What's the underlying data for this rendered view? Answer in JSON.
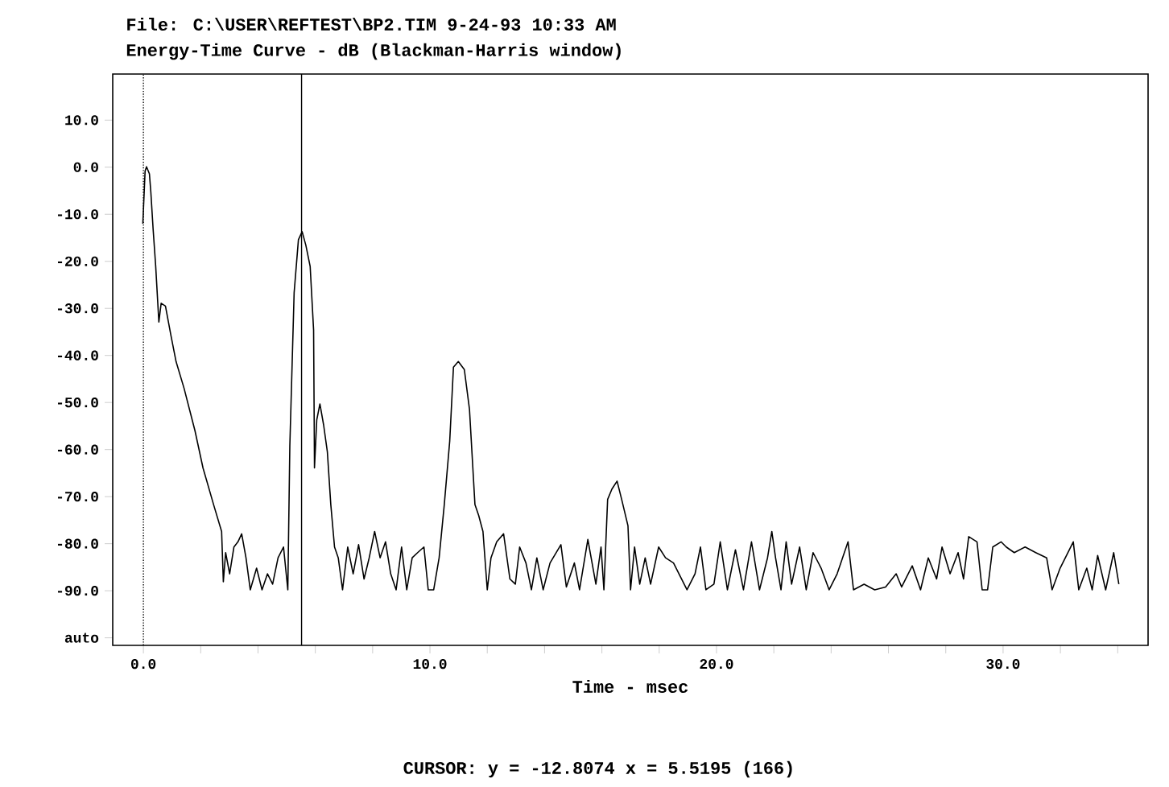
{
  "chart_data": {
    "type": "line",
    "title": "File: C:\\USER\\REFTEST\\BP2.TIM 9-24-93 10:33 AM",
    "subtitle": "Energy-Time Curve - dB (Blackman-Harris window)",
    "xlabel": "Time - msec",
    "xlim": [
      -1.07,
      35.06
    ],
    "ylim": [
      -101.6,
      19.8
    ],
    "xticks": [
      {
        "value": 0,
        "label": "0.0"
      },
      {
        "value": 2,
        "label": null
      },
      {
        "value": 4,
        "label": null
      },
      {
        "value": 6,
        "label": null
      },
      {
        "value": 8,
        "label": null
      },
      {
        "value": 10,
        "label": "10.0"
      },
      {
        "value": 12,
        "label": null
      },
      {
        "value": 14,
        "label": null
      },
      {
        "value": 16,
        "label": null
      },
      {
        "value": 18,
        "label": null
      },
      {
        "value": 20,
        "label": "20.0"
      },
      {
        "value": 22,
        "label": null
      },
      {
        "value": 24,
        "label": null
      },
      {
        "value": 26,
        "label": null
      },
      {
        "value": 28,
        "label": null
      },
      {
        "value": 30,
        "label": "30.0"
      },
      {
        "value": 32,
        "label": null
      },
      {
        "value": 34,
        "label": null
      }
    ],
    "yticks": [
      {
        "value": 10,
        "label": "10.0"
      },
      {
        "value": 0,
        "label": "0.0"
      },
      {
        "value": -10,
        "label": "-10.0"
      },
      {
        "value": -20,
        "label": "-20.0"
      },
      {
        "value": -30,
        "label": "-30.0"
      },
      {
        "value": -40,
        "label": "-40.0"
      },
      {
        "value": -50,
        "label": "-50.0"
      },
      {
        "value": -60,
        "label": "-60.0"
      },
      {
        "value": -70,
        "label": "-70.0"
      },
      {
        "value": -80,
        "label": "-80.0"
      },
      {
        "value": -90,
        "label": "-90.0"
      },
      {
        "value": -100,
        "label": "auto"
      }
    ],
    "series": [
      {
        "color": "#000000",
        "x": [
          -0.02,
          0.06,
          0.11,
          0.21,
          0.26,
          0.34,
          0.43,
          0.54,
          0.62,
          0.77,
          0.96,
          1.14,
          1.42,
          1.8,
          2.08,
          2.45,
          2.73,
          2.79,
          2.87,
          3.01,
          3.16,
          3.3,
          3.43,
          3.58,
          3.73,
          3.95,
          4.14,
          4.33,
          4.51,
          4.7,
          4.89,
          5.04,
          5.11,
          5.26,
          5.41,
          5.54,
          5.67,
          5.82,
          5.94,
          5.97,
          6.05,
          6.16,
          6.29,
          6.42,
          6.54,
          6.67,
          6.8,
          6.95,
          7.13,
          7.32,
          7.51,
          7.7,
          7.88,
          8.07,
          8.26,
          8.45,
          8.63,
          8.82,
          9.01,
          9.19,
          9.38,
          9.57,
          9.79,
          9.94,
          10.13,
          10.32,
          10.5,
          10.69,
          10.82,
          10.99,
          11.2,
          11.38,
          11.57,
          11.7,
          11.85,
          12.0,
          12.13,
          12.33,
          12.57,
          12.79,
          12.98,
          13.13,
          13.35,
          13.54,
          13.73,
          13.95,
          14.19,
          14.57,
          14.76,
          15.04,
          15.22,
          15.51,
          15.79,
          15.97,
          16.07,
          16.2,
          16.35,
          16.53,
          16.69,
          16.91,
          17.0,
          17.14,
          17.32,
          17.51,
          17.7,
          17.98,
          18.22,
          18.5,
          18.69,
          18.97,
          19.25,
          19.44,
          19.63,
          19.91,
          20.13,
          20.38,
          20.66,
          20.94,
          21.22,
          21.5,
          21.78,
          21.93,
          22.06,
          22.25,
          22.43,
          22.62,
          22.9,
          23.13,
          23.37,
          23.65,
          23.93,
          24.21,
          24.59,
          24.78,
          25.15,
          25.52,
          25.9,
          26.27,
          26.46,
          26.83,
          27.12,
          27.39,
          27.68,
          27.87,
          28.15,
          28.43,
          28.62,
          28.8,
          29.09,
          29.27,
          29.46,
          29.64,
          29.93,
          30.11,
          30.39,
          30.77,
          31.14,
          31.52,
          31.71,
          31.99,
          32.45,
          32.64,
          32.92,
          33.11,
          33.3,
          33.58,
          33.86,
          34.04
        ],
        "values": [
          -12.0,
          -0.8,
          0.1,
          -1.4,
          -5.3,
          -13.2,
          -21.1,
          -32.9,
          -28.9,
          -29.5,
          -35.7,
          -41.3,
          -47.0,
          -56.0,
          -63.9,
          -71.7,
          -77.4,
          -88.1,
          -81.9,
          -86.4,
          -80.7,
          -79.6,
          -77.9,
          -83.0,
          -89.8,
          -85.2,
          -89.8,
          -86.4,
          -88.6,
          -83.0,
          -80.7,
          -89.8,
          -59.3,
          -26.7,
          -15.4,
          -13.7,
          -16.6,
          -21.1,
          -34.6,
          -63.9,
          -53.7,
          -50.3,
          -54.8,
          -60.5,
          -71.7,
          -80.7,
          -83.0,
          -89.8,
          -80.7,
          -86.4,
          -80.2,
          -87.5,
          -83.0,
          -77.4,
          -83.0,
          -79.6,
          -86.4,
          -89.8,
          -80.7,
          -89.8,
          -83.0,
          -81.9,
          -80.7,
          -89.8,
          -89.8,
          -83.0,
          -71.7,
          -58.2,
          -42.5,
          -41.3,
          -43.0,
          -51.5,
          -71.7,
          -74.0,
          -77.4,
          -89.8,
          -83.0,
          -79.6,
          -77.9,
          -87.5,
          -88.6,
          -80.7,
          -84.1,
          -89.8,
          -83.0,
          -89.8,
          -84.1,
          -80.2,
          -89.2,
          -84.1,
          -89.8,
          -79.1,
          -88.6,
          -80.7,
          -89.8,
          -70.6,
          -68.4,
          -66.7,
          -70.6,
          -76.2,
          -89.8,
          -80.7,
          -88.6,
          -83.0,
          -88.6,
          -80.7,
          -83.0,
          -84.1,
          -86.4,
          -89.8,
          -86.4,
          -80.7,
          -89.8,
          -88.6,
          -79.6,
          -89.8,
          -81.3,
          -89.8,
          -79.6,
          -89.8,
          -83.0,
          -77.4,
          -83.0,
          -89.8,
          -79.6,
          -88.6,
          -80.7,
          -89.8,
          -81.9,
          -85.2,
          -89.8,
          -86.4,
          -79.6,
          -89.8,
          -88.6,
          -89.8,
          -89.2,
          -86.4,
          -89.2,
          -84.7,
          -89.8,
          -83.0,
          -87.5,
          -80.7,
          -86.4,
          -81.9,
          -87.5,
          -78.5,
          -79.6,
          -89.8,
          -89.8,
          -80.7,
          -79.6,
          -80.7,
          -81.9,
          -80.7,
          -81.9,
          -83.0,
          -89.8,
          -85.2,
          -79.6,
          -89.8,
          -85.2,
          -89.8,
          -82.5,
          -89.8,
          -81.9,
          -88.6
        ]
      }
    ],
    "ref_lines": [
      {
        "axis": "x",
        "value": 0,
        "line_style": "dotted"
      },
      {
        "axis": "x",
        "value": 5.5195,
        "line_style": "solid"
      }
    ],
    "annotations": [
      "CURSOR: y = -12.8074 x = 5.5195 (166)"
    ]
  }
}
